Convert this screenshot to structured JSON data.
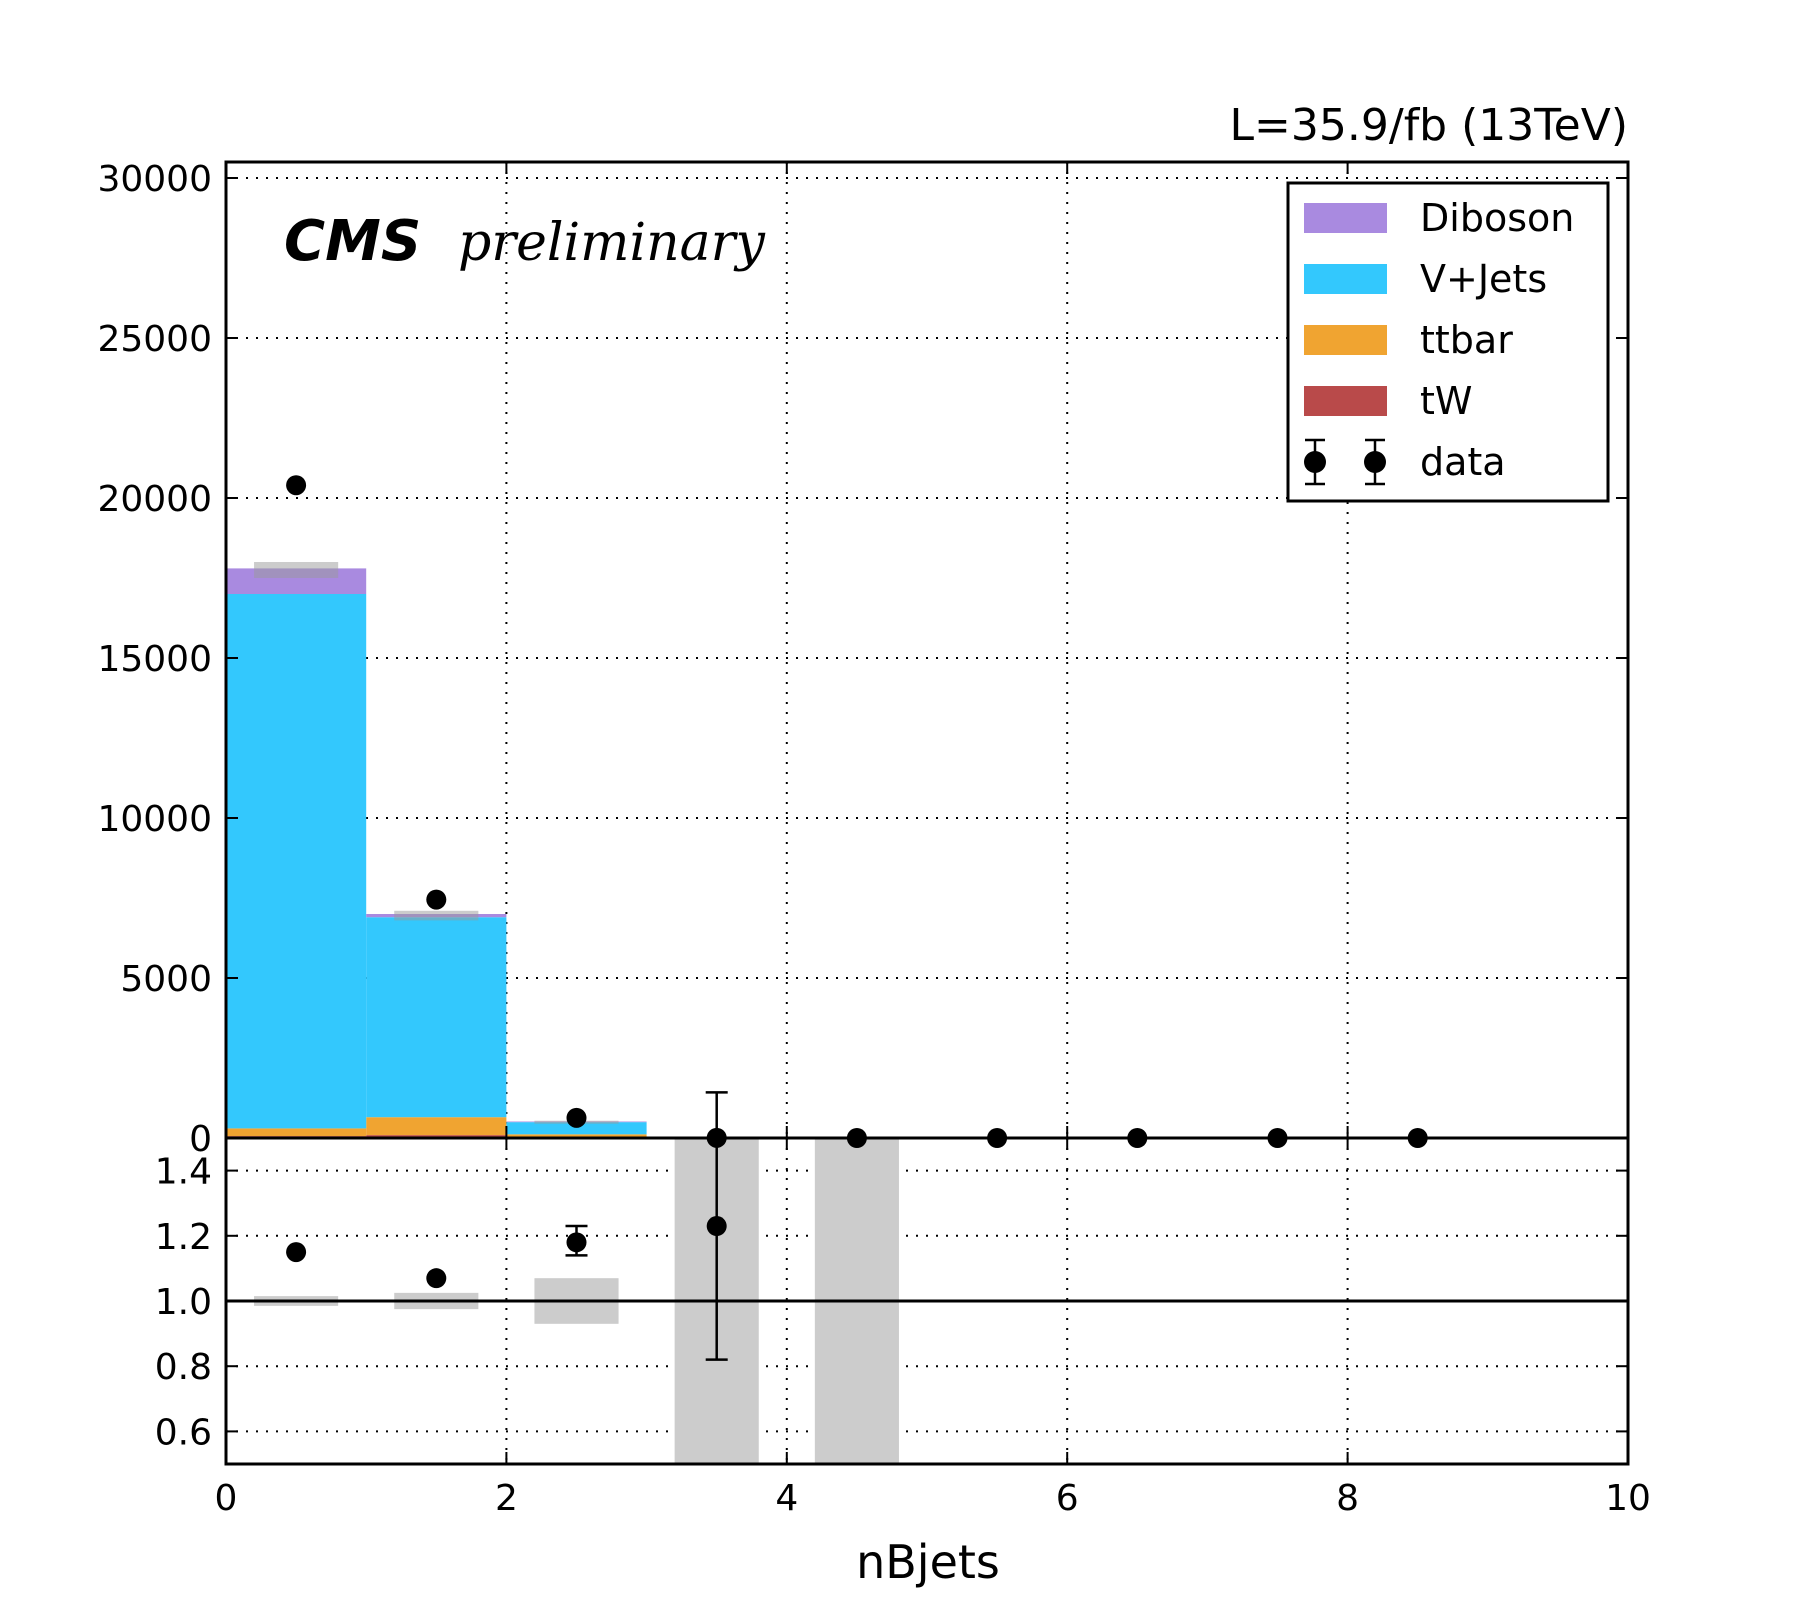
{
  "chart_data": {
    "type": "bar",
    "stacked": true,
    "lumi_label": "L=35.9/fb (13TeV)",
    "experiment_label": "CMS",
    "status_label": "preliminary",
    "xlabel": "nBjets",
    "xlim": [
      0,
      10
    ],
    "x_ticks": [
      "0",
      "2",
      "4",
      "6",
      "8",
      "10"
    ],
    "bins": [
      [
        0,
        1
      ],
      [
        1,
        2
      ],
      [
        2,
        3
      ],
      [
        3,
        4
      ],
      [
        4,
        5
      ],
      [
        5,
        6
      ],
      [
        6,
        7
      ],
      [
        7,
        8
      ],
      [
        8,
        9
      ],
      [
        9,
        10
      ]
    ],
    "main_panel": {
      "ylim": [
        0,
        30500
      ],
      "y_ticks": [
        "0",
        "5000",
        "10000",
        "15000",
        "20000",
        "25000",
        "30000"
      ],
      "grid": true,
      "series": [
        {
          "name": "tW",
          "color": "#b94a4a",
          "values": [
            60,
            90,
            15,
            0,
            0,
            0,
            0,
            0,
            0,
            0
          ]
        },
        {
          "name": "ttbar",
          "color": "#f0a431",
          "values": [
            240,
            560,
            100,
            5,
            1,
            0,
            0,
            0,
            0,
            0
          ]
        },
        {
          "name": "V+Jets",
          "color": "#33c8fd",
          "values": [
            16700,
            6250,
            380,
            2,
            1,
            0,
            0,
            0,
            0,
            0
          ]
        },
        {
          "name": "Diboson",
          "color": "#a98ae0",
          "values": [
            800,
            100,
            20,
            0,
            0,
            0,
            0,
            0,
            0,
            0
          ]
        }
      ],
      "mc_uncertainty": [
        {
          "bin": 0,
          "low": 17500,
          "high": 18000
        },
        {
          "bin": 1,
          "low": 6800,
          "high": 7100
        },
        {
          "bin": 2,
          "low": 490,
          "high": 540
        }
      ],
      "data_points": {
        "name": "data",
        "x": [
          0.5,
          1.5,
          2.5,
          3.5,
          4.5,
          5.5,
          6.5,
          7.5,
          8.5
        ],
        "y": [
          20400,
          7450,
          630,
          5,
          0,
          0,
          0,
          0,
          0
        ],
        "yerr": [
          143,
          86,
          25,
          2,
          0,
          0,
          0,
          0,
          0
        ]
      },
      "legend": {
        "placement": "top-right",
        "entries": [
          "Diboson",
          "V+Jets",
          "ttbar",
          "tW",
          "data"
        ]
      }
    },
    "ratio_panel": {
      "ylim": [
        0.5,
        1.5
      ],
      "y_ticks": [
        "0.6",
        "0.8",
        "1.0",
        "1.2",
        "1.4"
      ],
      "reference_line": 1.0,
      "grid": true,
      "uncertainty_bands": [
        {
          "bin": 0,
          "low": 0.985,
          "high": 1.015
        },
        {
          "bin": 1,
          "low": 0.975,
          "high": 1.025
        },
        {
          "bin": 2,
          "low": 0.93,
          "high": 1.07
        },
        {
          "bin": 3,
          "low": 0.5,
          "high": 1.5
        },
        {
          "bin": 4,
          "low": 0.5,
          "high": 1.5
        }
      ],
      "points": {
        "x": [
          0.5,
          1.5,
          2.5,
          3.5
        ],
        "y": [
          1.15,
          1.07,
          1.18,
          1.23
        ],
        "yerr_low": [
          0.007,
          0.012,
          0.04,
          0.41
        ],
        "yerr_high": [
          0.007,
          0.012,
          0.05,
          0.41
        ]
      }
    }
  }
}
